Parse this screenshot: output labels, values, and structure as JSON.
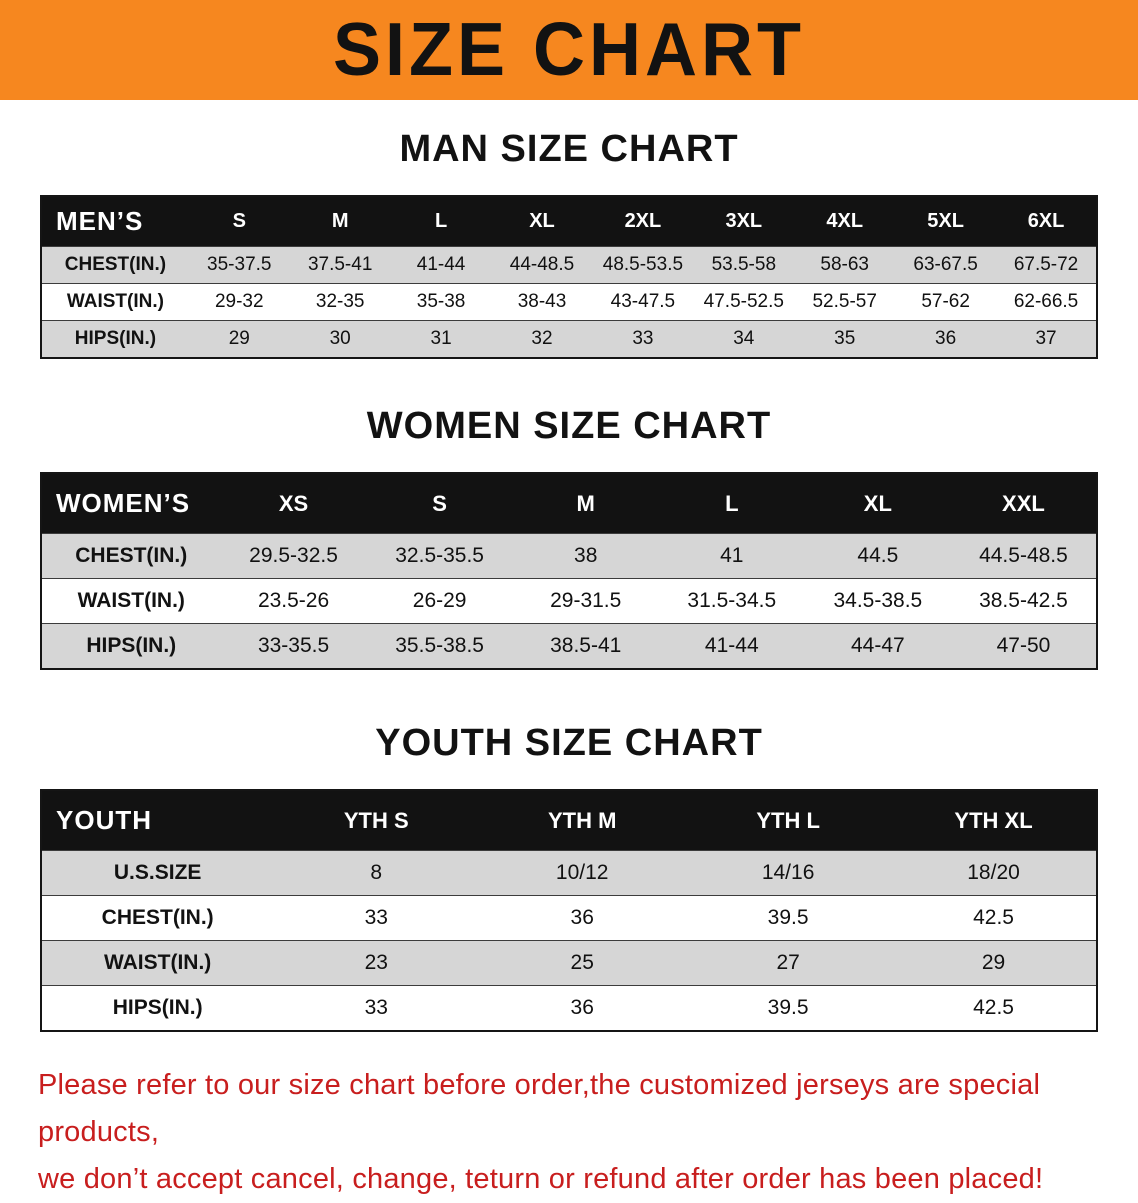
{
  "banner": {
    "title": "SIZE CHART"
  },
  "sections": [
    {
      "heading": "MAN SIZE CHART",
      "table": {
        "header": [
          "MEN’S",
          "S",
          "M",
          "L",
          "XL",
          "2XL",
          "3XL",
          "4XL",
          "5XL",
          "6XL"
        ],
        "rows": [
          [
            "CHEST(IN.)",
            "35-37.5",
            "37.5-41",
            "41-44",
            "44-48.5",
            "48.5-53.5",
            "53.5-58",
            "58-63",
            "63-67.5",
            "67.5-72"
          ],
          [
            "WAIST(IN.)",
            "29-32",
            "32-35",
            "35-38",
            "38-43",
            "43-47.5",
            "47.5-52.5",
            "52.5-57",
            "57-62",
            "62-66.5"
          ],
          [
            "HIPS(IN.)",
            "29",
            "30",
            "31",
            "32",
            "33",
            "34",
            "35",
            "36",
            "37"
          ]
        ]
      }
    },
    {
      "heading": "WOMEN SIZE CHART",
      "table": {
        "header": [
          "WOMEN’S",
          "XS",
          "S",
          "M",
          "L",
          "XL",
          "XXL"
        ],
        "rows": [
          [
            "CHEST(IN.)",
            "29.5-32.5",
            "32.5-35.5",
            "38",
            "41",
            "44.5",
            "44.5-48.5"
          ],
          [
            "WAIST(IN.)",
            "23.5-26",
            "26-29",
            "29-31.5",
            "31.5-34.5",
            "34.5-38.5",
            "38.5-42.5"
          ],
          [
            "HIPS(IN.)",
            "33-35.5",
            "35.5-38.5",
            "38.5-41",
            "41-44",
            "44-47",
            "47-50"
          ]
        ]
      }
    },
    {
      "heading": "YOUTH SIZE CHART",
      "table": {
        "header": [
          "YOUTH",
          "YTH S",
          "YTH M",
          "YTH L",
          "YTH XL"
        ],
        "rows": [
          [
            "U.S.SIZE",
            "8",
            "10/12",
            "14/16",
            "18/20"
          ],
          [
            "CHEST(IN.)",
            "33",
            "36",
            "39.5",
            "42.5"
          ],
          [
            "WAIST(IN.)",
            "23",
            "25",
            "27",
            "29"
          ],
          [
            "HIPS(IN.)",
            "33",
            "36",
            "39.5",
            "42.5"
          ]
        ]
      }
    }
  ],
  "disclaimer": {
    "line1": "Please refer to our size chart before order,the customized jerseys are special products,",
    "line2": "we don’t accept cancel, change, teturn or refund after order has been placed!"
  },
  "colors": {
    "banner_orange": "#f6871f",
    "header_black": "#121212",
    "row_gray": "#d6d6d6",
    "disclaimer_red": "#c81e1e"
  }
}
